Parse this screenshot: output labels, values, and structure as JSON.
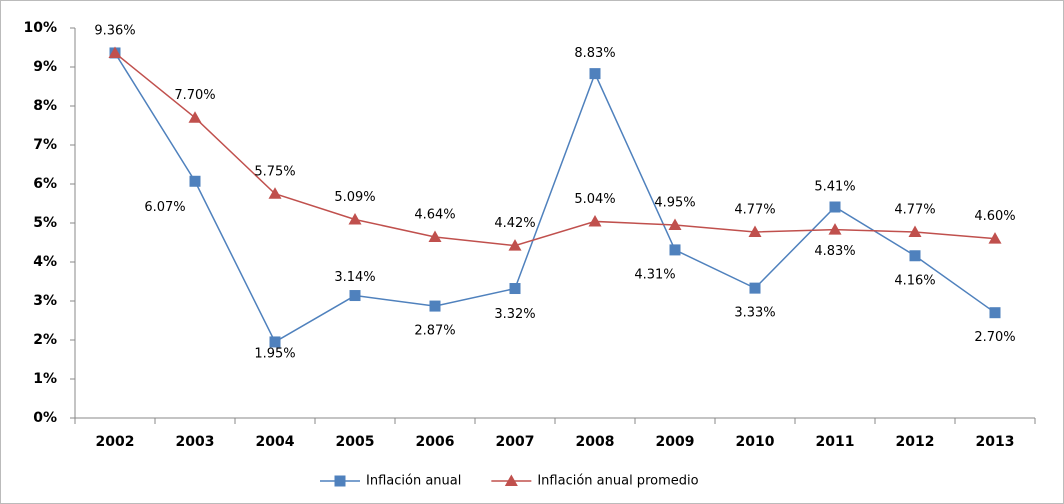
{
  "chart_data": {
    "type": "line",
    "categories": [
      "2002",
      "2003",
      "2004",
      "2005",
      "2006",
      "2007",
      "2008",
      "2009",
      "2010",
      "2011",
      "2012",
      "2013"
    ],
    "series": [
      {
        "name": "Inflación anual",
        "color": "#4f81bd",
        "marker": "square",
        "values": [
          9.36,
          6.07,
          1.95,
          3.14,
          2.87,
          3.32,
          8.83,
          4.31,
          3.33,
          5.41,
          4.16,
          2.7
        ],
        "value_labels": [
          "9.36%",
          "6.07%",
          "1.95%",
          "3.14%",
          "2.87%",
          "3.32%",
          "8.83%",
          "4.31%",
          "3.33%",
          "5.41%",
          "4.16%",
          "2.70%"
        ]
      },
      {
        "name": "Inflación anual promedio",
        "color": "#c0504d",
        "marker": "triangle",
        "values": [
          9.36,
          7.7,
          5.75,
          5.09,
          4.64,
          4.42,
          5.04,
          4.95,
          4.77,
          4.83,
          4.77,
          4.6
        ],
        "value_labels": [
          null,
          "7.70%",
          "5.75%",
          "5.09%",
          "4.64%",
          "4.42%",
          "5.04%",
          "4.95%",
          "4.77%",
          "4.83%",
          "4.77%",
          "4.60%"
        ]
      }
    ],
    "ylim": [
      0,
      10
    ],
    "yticks": [
      {
        "value": 0,
        "label": "0%"
      },
      {
        "value": 1,
        "label": "1%"
      },
      {
        "value": 2,
        "label": "2%"
      },
      {
        "value": 3,
        "label": "3%"
      },
      {
        "value": 4,
        "label": "4%"
      },
      {
        "value": 5,
        "label": "5%"
      },
      {
        "value": 6,
        "label": "6%"
      },
      {
        "value": 7,
        "label": "7%"
      },
      {
        "value": 8,
        "label": "8%"
      },
      {
        "value": 9,
        "label": "9%"
      },
      {
        "value": 10,
        "label": "10%"
      }
    ],
    "grid": false,
    "legend": "bottom"
  }
}
